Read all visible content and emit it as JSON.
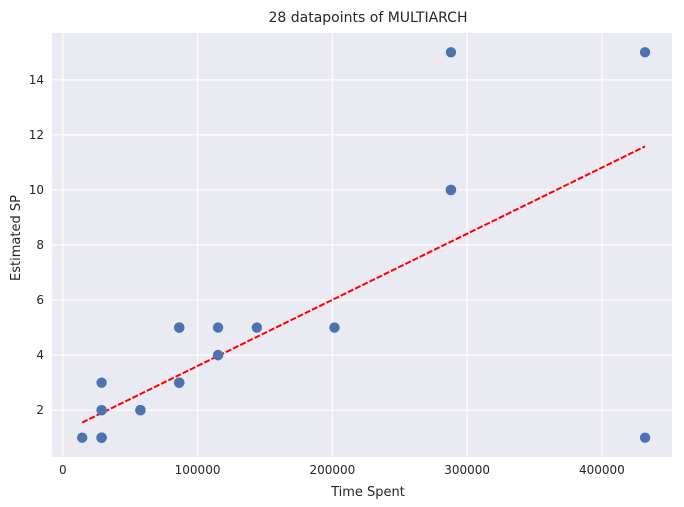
{
  "chart_data": {
    "type": "scatter",
    "title": "28 datapoints of MULTIARCH",
    "xlabel": "Time Spent",
    "ylabel": "Estimated SP",
    "xlim": [
      -8000,
      452000
    ],
    "ylim": [
      0.3,
      15.7
    ],
    "xticks": [
      0,
      100000,
      200000,
      300000,
      400000
    ],
    "xtick_labels": [
      "0",
      "100000",
      "200000",
      "300000",
      "400000"
    ],
    "yticks": [
      2,
      4,
      6,
      8,
      10,
      12,
      14
    ],
    "ytick_labels": [
      "2",
      "4",
      "6",
      "8",
      "10",
      "12",
      "14"
    ],
    "grid": true,
    "colors": {
      "background": "#eaeaf2",
      "grid": "#ffffff",
      "points": "#4c72b0",
      "trend": "#ff0000"
    },
    "points": [
      {
        "x": 14400,
        "y": 1
      },
      {
        "x": 28800,
        "y": 1
      },
      {
        "x": 28800,
        "y": 1
      },
      {
        "x": 28800,
        "y": 1
      },
      {
        "x": 28800,
        "y": 2
      },
      {
        "x": 28800,
        "y": 2
      },
      {
        "x": 28800,
        "y": 3
      },
      {
        "x": 57600,
        "y": 2
      },
      {
        "x": 57600,
        "y": 2
      },
      {
        "x": 86400,
        "y": 3
      },
      {
        "x": 86400,
        "y": 3
      },
      {
        "x": 86400,
        "y": 3
      },
      {
        "x": 86400,
        "y": 5
      },
      {
        "x": 86400,
        "y": 5
      },
      {
        "x": 115200,
        "y": 4
      },
      {
        "x": 115200,
        "y": 4
      },
      {
        "x": 115200,
        "y": 5
      },
      {
        "x": 144000,
        "y": 5
      },
      {
        "x": 201600,
        "y": 5
      },
      {
        "x": 288000,
        "y": 10
      },
      {
        "x": 288000,
        "y": 10
      },
      {
        "x": 288000,
        "y": 10
      },
      {
        "x": 288000,
        "y": 15
      },
      {
        "x": 432000,
        "y": 15
      },
      {
        "x": 432000,
        "y": 1
      },
      {
        "x": 28800,
        "y": 1
      },
      {
        "x": 57600,
        "y": 2
      },
      {
        "x": 86400,
        "y": 5
      }
    ],
    "trend_line": {
      "x": [
        14400,
        432000
      ],
      "y": [
        1.55,
        11.58
      ],
      "style": "dashed"
    }
  }
}
